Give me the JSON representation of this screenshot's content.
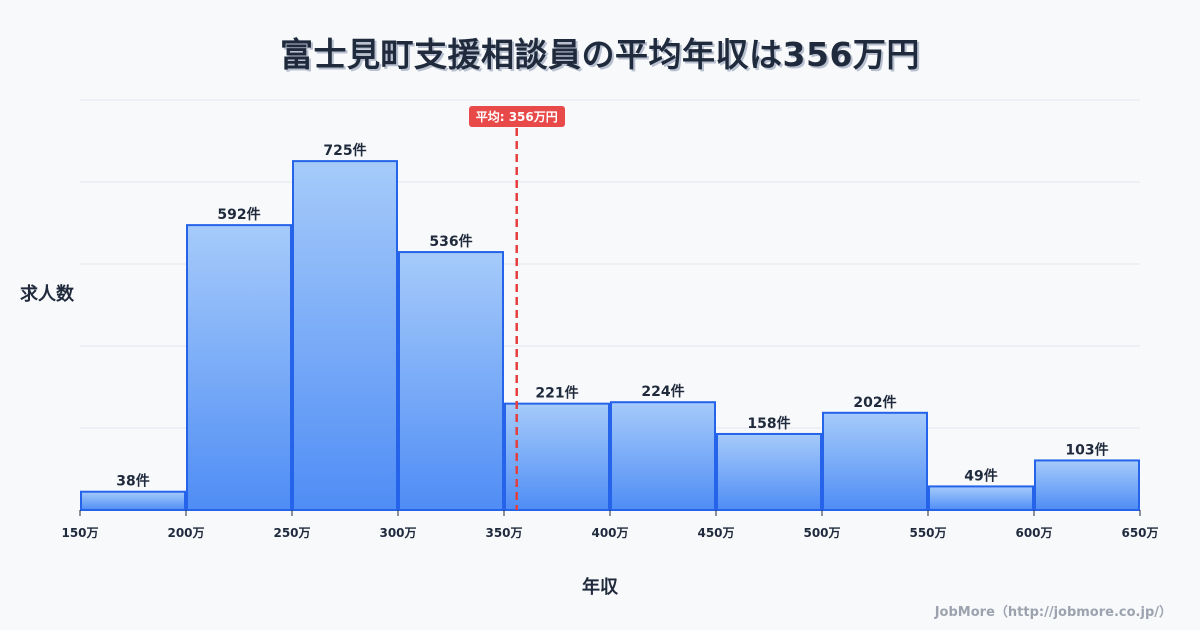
{
  "title": "富士見町支援相談員の平均年収は356万円",
  "credit": "JobMore（http://jobmore.co.jp/）",
  "mean_badge": "平均: 356万円",
  "colors": {
    "bar_top": "#a6cbfa",
    "bar_bottom": "#4f8df5",
    "bar_stroke": "#2563eb",
    "mean_line": "#e53e3e",
    "grid": "#e2e5ec"
  },
  "chart_data": {
    "type": "bar",
    "title": "富士見町支援相談員の平均年収は356万円",
    "xlabel": "年収",
    "ylabel": "求人数",
    "x_ticks": [
      "150万",
      "200万",
      "250万",
      "300万",
      "350万",
      "400万",
      "450万",
      "500万",
      "550万",
      "600万",
      "650万"
    ],
    "categories": [
      "150-200万",
      "200-250万",
      "250-300万",
      "300-350万",
      "350-400万",
      "400-450万",
      "450-500万",
      "500-550万",
      "550-600万",
      "600-650万"
    ],
    "values": [
      38,
      592,
      725,
      536,
      221,
      224,
      158,
      202,
      49,
      103
    ],
    "value_labels": [
      "38件",
      "592件",
      "725件",
      "536件",
      "221件",
      "224件",
      "158件",
      "202件",
      "49件",
      "103件"
    ],
    "mean": 356,
    "mean_label": "平均: 356万円",
    "xlim": [
      150,
      650
    ],
    "ylim": [
      0,
      852
    ],
    "grid": true
  }
}
